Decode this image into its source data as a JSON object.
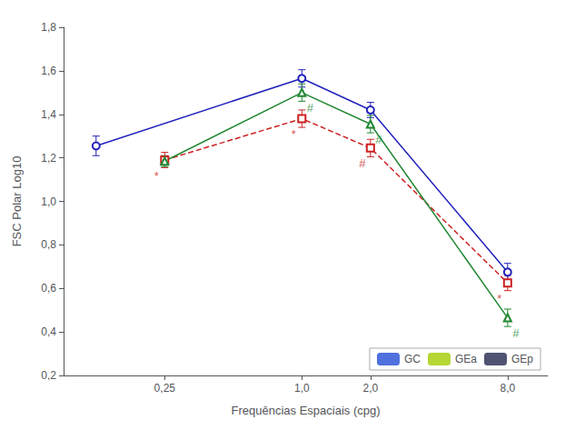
{
  "chart_data": {
    "type": "line",
    "xlabel": "Frequências Espaciais (cpg)",
    "ylabel": "FSC Polar Log10",
    "log": "x",
    "grid": false,
    "legend": "lower right",
    "xlim": [
      0.09,
      12.0
    ],
    "xticks": [
      {
        "value": 0.25,
        "label": "0,25"
      },
      {
        "value": 1.0,
        "label": "1,0"
      },
      {
        "value": 2.0,
        "label": "2,0"
      },
      {
        "value": 8.0,
        "label": "8,0"
      }
    ],
    "ylim": [
      0.2,
      1.8
    ],
    "yticks": [
      {
        "value": 0.2,
        "label": "0,2"
      },
      {
        "value": 0.4,
        "label": "0,4"
      },
      {
        "value": 0.6,
        "label": "0,6"
      },
      {
        "value": 0.8,
        "label": "0,8"
      },
      {
        "value": 1.0,
        "label": "1,0"
      },
      {
        "value": 1.2,
        "label": "1,2"
      },
      {
        "value": 1.4,
        "label": "1,4"
      },
      {
        "value": 1.6,
        "label": "1,6"
      },
      {
        "value": 1.8,
        "label": "1,8"
      }
    ],
    "series": [
      {
        "name": "GC",
        "color": "#2222bb",
        "line_style": "solid",
        "marker": "circle",
        "x": [
          0.125,
          1.0,
          2.0,
          8.0
        ],
        "values": [
          1.255,
          1.565,
          1.42,
          0.675
        ],
        "yerr": [
          0.045,
          0.04,
          0.035,
          0.04
        ]
      },
      {
        "name": "GEa",
        "color": "#cc2222",
        "line_style": "dashed",
        "marker": "square",
        "x": [
          0.25,
          1.0,
          2.0,
          8.0
        ],
        "values": [
          1.19,
          1.38,
          1.245,
          0.625
        ],
        "yerr": [
          0.035,
          0.04,
          0.04,
          0.035
        ]
      },
      {
        "name": "GEp",
        "color": "#228833",
        "line_style": "solid",
        "marker": "triangle",
        "x": [
          0.25,
          1.0,
          2.0,
          8.0
        ],
        "values": [
          1.185,
          1.5,
          1.355,
          0.465
        ],
        "yerr": [
          0.025,
          0.04,
          0.04,
          0.04
        ]
      }
    ],
    "annotations": [
      {
        "series": "GEa",
        "x": 0.25,
        "y": 1.19,
        "text": "*"
      },
      {
        "series": "GEa",
        "x": 1.0,
        "y": 1.38,
        "text": "*"
      },
      {
        "series": "GEa",
        "x": 2.0,
        "y": 1.245,
        "text": "#"
      },
      {
        "series": "GEa",
        "x": 8.0,
        "y": 0.625,
        "text": "*"
      },
      {
        "series": "GEp",
        "x": 1.0,
        "y": 1.5,
        "text": "#"
      },
      {
        "series": "GEp",
        "x": 2.0,
        "y": 1.355,
        "text": "#"
      },
      {
        "series": "GEp",
        "x": 8.0,
        "y": 0.465,
        "text": "#"
      }
    ]
  }
}
